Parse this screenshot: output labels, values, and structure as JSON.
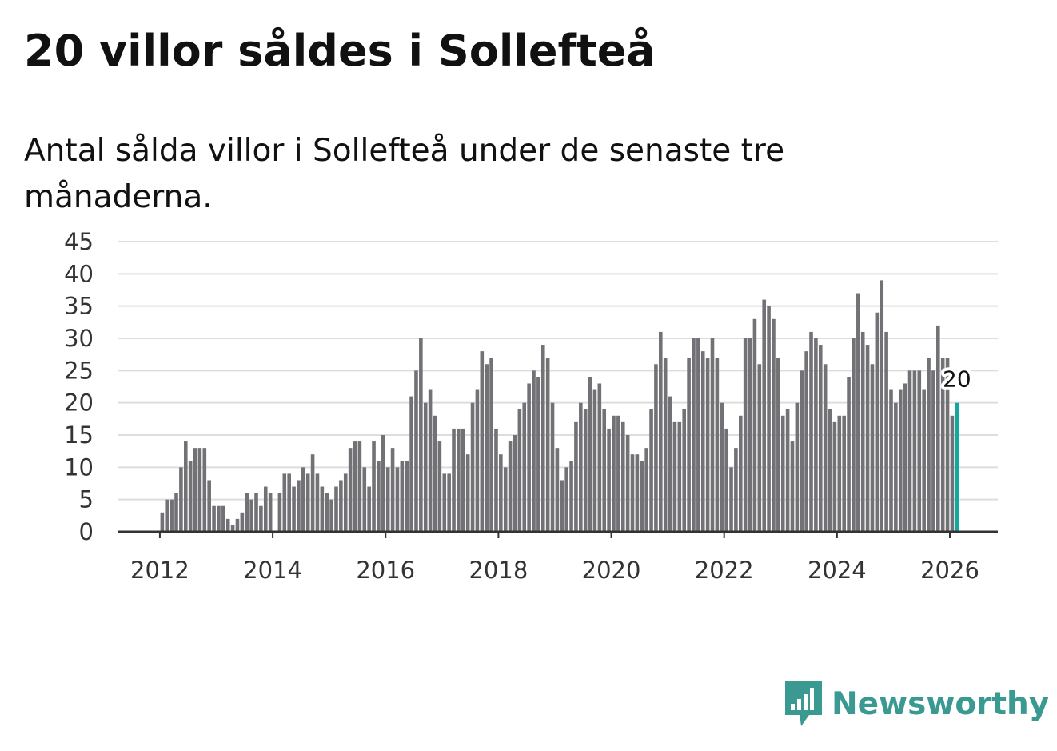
{
  "title": "20 villor såldes i Sollefteå",
  "subtitle": "Antal sålda villor i Sollefteå under de senaste tre månaderna.",
  "brand": {
    "name": "Newsworthy",
    "icon": "newsworthy-logo-icon",
    "color": "#3a9a91"
  },
  "colors": {
    "bar": "#717176",
    "highlight": "#12a8a0",
    "grid": "#dddddd",
    "axis": "#333333"
  },
  "chart_data": {
    "type": "bar",
    "title": "20 villor såldes i Sollefteå",
    "xlabel": "",
    "ylabel": "",
    "ylim": [
      0,
      45
    ],
    "yticks": [
      0,
      5,
      10,
      15,
      20,
      25,
      30,
      35,
      40,
      45
    ],
    "xticks": [
      "2012",
      "2014",
      "2016",
      "2018",
      "2020",
      "2022",
      "2024",
      "2026"
    ],
    "x_start": "2012-01",
    "x_range": [
      2011.25,
      2026.85
    ],
    "grid": true,
    "highlight_last": true,
    "last_label": "20",
    "values": [
      3,
      5,
      5,
      6,
      10,
      14,
      11,
      13,
      13,
      13,
      8,
      4,
      4,
      4,
      2,
      1,
      2,
      3,
      6,
      5,
      6,
      4,
      7,
      6,
      0,
      6,
      9,
      9,
      7,
      8,
      10,
      9,
      12,
      9,
      7,
      6,
      5,
      7,
      8,
      9,
      13,
      14,
      14,
      10,
      7,
      14,
      11,
      15,
      10,
      13,
      10,
      11,
      11,
      21,
      25,
      30,
      20,
      22,
      18,
      14,
      9,
      9,
      16,
      16,
      16,
      12,
      20,
      22,
      28,
      26,
      27,
      16,
      12,
      10,
      14,
      15,
      19,
      20,
      23,
      25,
      24,
      29,
      27,
      20,
      13,
      8,
      10,
      11,
      17,
      20,
      19,
      24,
      22,
      23,
      19,
      16,
      18,
      18,
      17,
      15,
      12,
      12,
      11,
      13,
      19,
      26,
      31,
      27,
      21,
      17,
      17,
      19,
      27,
      30,
      30,
      28,
      27,
      30,
      27,
      20,
      16,
      10,
      13,
      18,
      30,
      30,
      33,
      26,
      36,
      35,
      33,
      27,
      18,
      19,
      14,
      20,
      25,
      28,
      31,
      30,
      29,
      26,
      19,
      17,
      18,
      18,
      24,
      30,
      37,
      31,
      29,
      26,
      34,
      39,
      31,
      22,
      20,
      22,
      23,
      25,
      25,
      25,
      22,
      27,
      25,
      32,
      27,
      27,
      18,
      20
    ]
  }
}
